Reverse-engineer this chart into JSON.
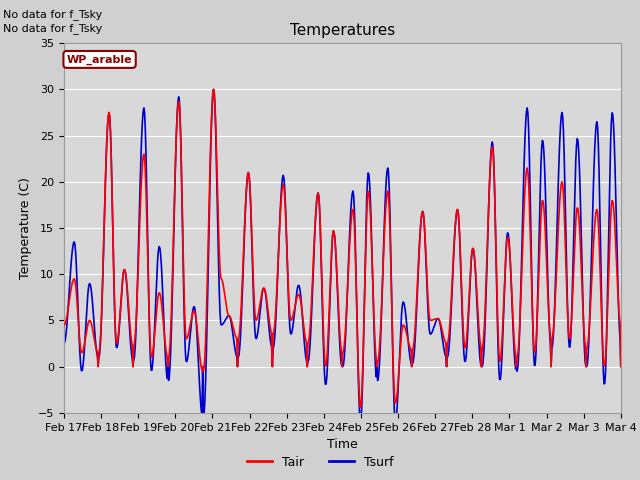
{
  "title": "Temperatures",
  "xlabel": "Time",
  "ylabel": "Temperature (C)",
  "ylim": [
    -5,
    35
  ],
  "yticks": [
    -5,
    0,
    5,
    10,
    15,
    20,
    25,
    30,
    35
  ],
  "xtick_labels": [
    "Feb 17",
    "Feb 18",
    "Feb 19",
    "Feb 20",
    "Feb 21",
    "Feb 22",
    "Feb 23",
    "Feb 24",
    "Feb 25",
    "Feb 26",
    "Feb 27",
    "Feb 28",
    "Mar 1",
    "Mar 2",
    "Mar 3",
    "Mar 4"
  ],
  "text_lines": [
    "No data for f_Tsky",
    "No data for f_Tsky"
  ],
  "legend_box_label": "WP_arable",
  "tair_color": "#ff0000",
  "tsurf_color": "#0000cc",
  "background_color": "#d0d0d0",
  "plot_bg_color": "#d8d8d8",
  "grid_color": "#ffffff",
  "title_fontsize": 11,
  "label_fontsize": 9,
  "tick_fontsize": 8,
  "n_days": 16,
  "daily_peak_max": [
    9.5,
    27.5,
    23.0,
    28.7,
    30.0,
    21.0,
    19.7,
    18.8,
    17.0,
    19.0,
    16.8,
    17.0,
    23.8,
    21.5,
    20.0,
    17.0
  ],
  "daily_peak_max2": [
    5.0,
    10.5,
    8.0,
    6.0,
    5.5,
    8.5,
    7.8,
    14.7,
    19.0,
    4.5,
    5.2,
    12.8,
    14.0,
    18.0,
    17.2,
    18.0
  ],
  "daily_min1": [
    4.5,
    1.5,
    2.2,
    1.0,
    -0.5,
    3.0,
    3.5,
    2.5,
    1.5,
    0.5,
    1.8,
    2.5,
    2.0,
    1.0,
    3.0,
    2.0
  ],
  "daily_min2": [
    1.5,
    2.5,
    1.0,
    3.0,
    9.5,
    5.0,
    5.0,
    0.0,
    -4.5,
    -4.0,
    5.0,
    2.0,
    0.5,
    1.5,
    3.0,
    0.0
  ],
  "tsurf_peak_extra": [
    4.0,
    0.0,
    5.0,
    0.5,
    0.0,
    0.0,
    1.0,
    0.0,
    2.0,
    2.5,
    0.0,
    0.0,
    0.5,
    6.5,
    7.5,
    9.5
  ],
  "tsurf_min_delta": [
    -2.0,
    -0.5,
    -1.5,
    -2.5,
    -5.0,
    -2.0,
    -1.5,
    -2.0,
    -1.5,
    -2.0,
    -1.5,
    -1.5,
    -2.0,
    -1.5,
    -1.0,
    -2.0
  ]
}
